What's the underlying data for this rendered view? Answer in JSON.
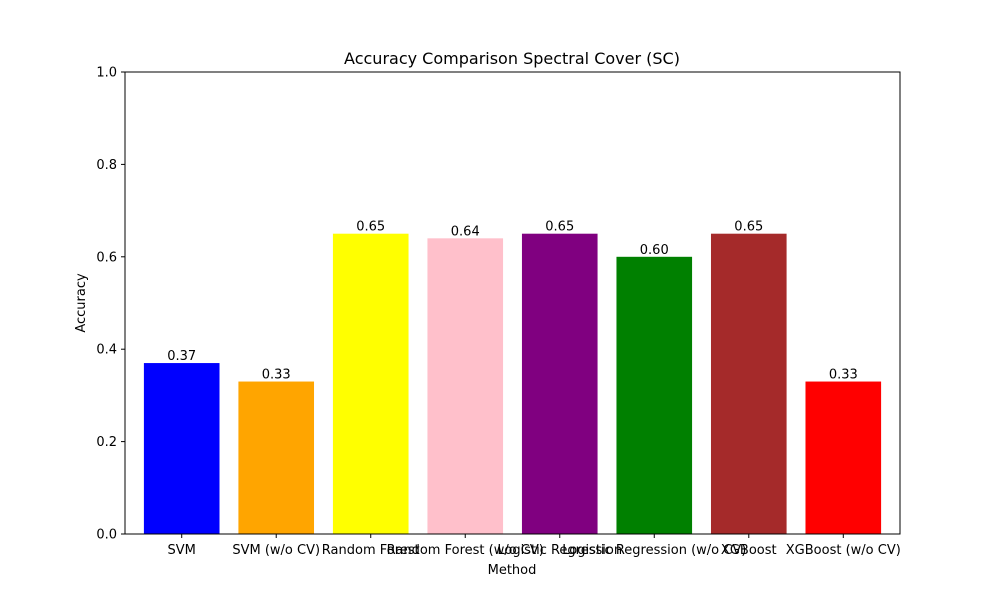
{
  "chart_data": {
    "type": "bar",
    "title": "Accuracy Comparison Spectral Cover (SC)",
    "xlabel": "Method",
    "ylabel": "Accuracy",
    "ylim": [
      0,
      1.0
    ],
    "yticks": [
      "0.0",
      "0.2",
      "0.4",
      "0.6",
      "0.8",
      "1.0"
    ],
    "grid": false,
    "categories": [
      "SVM",
      "SVM (w/o CV)",
      "Random Forest",
      "Random Forest (w/o CV)",
      "Logistic Regression",
      "Logistic Regression (w/o CV)",
      "XGBoost",
      "XGBoost (w/o CV)"
    ],
    "values": [
      0.37,
      0.33,
      0.65,
      0.64,
      0.65,
      0.6,
      0.65,
      0.33
    ],
    "value_labels": [
      "0.37",
      "0.33",
      "0.65",
      "0.64",
      "0.65",
      "0.60",
      "0.65",
      "0.33"
    ],
    "colors": [
      "#0000ff",
      "#ffa500",
      "#ffff00",
      "#ffc0cb",
      "#800080",
      "#008000",
      "#a52a2a",
      "#ff0000"
    ]
  }
}
